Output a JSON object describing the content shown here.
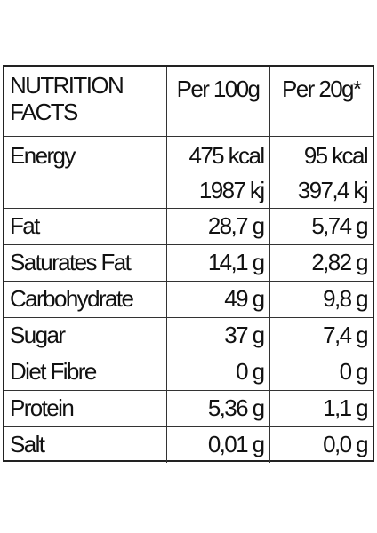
{
  "table": {
    "header": {
      "label": "NUTRITION FACTS",
      "col1": "Per 100g",
      "col2": "Per 20g*"
    },
    "energy": {
      "label": "Energy",
      "per100_kcal": "475 kcal",
      "per100_kj": "1987 kj",
      "per20_kcal": "95 kcal",
      "per20_kj": "397,4 kj"
    },
    "rows": [
      {
        "label": "Fat",
        "per100": "28,7 g",
        "per20": "5,74 g"
      },
      {
        "label": "Saturates Fat",
        "per100": "14,1 g",
        "per20": "2,82 g"
      },
      {
        "label": "Carbohydrate",
        "per100": "49 g",
        "per20": "9,8 g"
      },
      {
        "label": "Sugar",
        "per100": "37 g",
        "per20": "7,4 g"
      },
      {
        "label": "Diet Fibre",
        "per100": "0 g",
        "per20": "0 g"
      },
      {
        "label": "Protein",
        "per100": "5,36 g",
        "per20": "1,1 g"
      },
      {
        "label": "Salt",
        "per100": "0,01 g",
        "per20": "0,0 g"
      }
    ]
  }
}
